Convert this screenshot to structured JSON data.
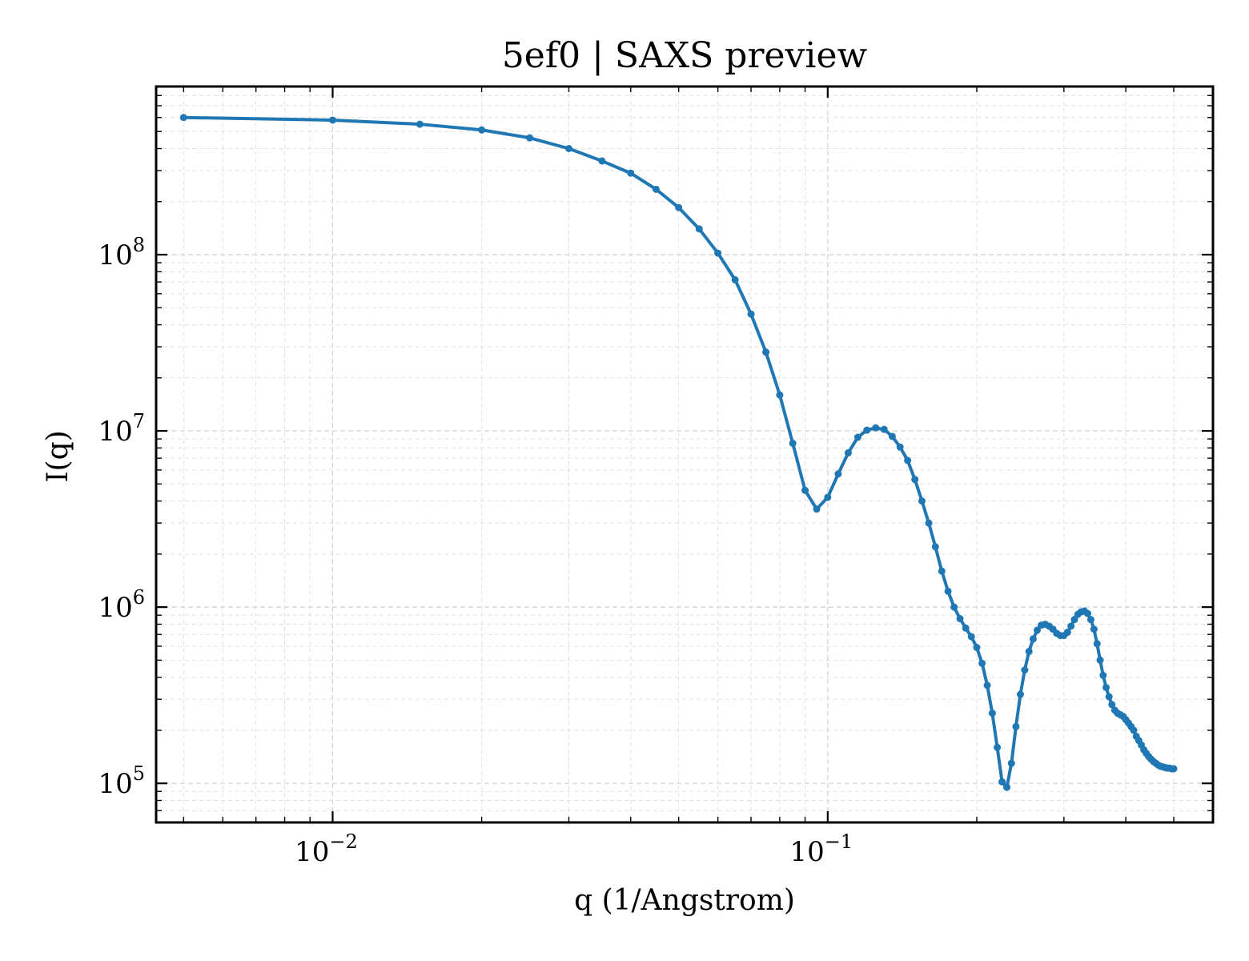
{
  "chart_data": {
    "type": "line",
    "title": "5ef0 | SAXS preview",
    "xlabel": "q (1/Angstrom)",
    "ylabel": "I(q)",
    "xscale": "log",
    "yscale": "log",
    "xlim": [
      0.0044,
      0.6
    ],
    "ylim": [
      60000,
      900000000
    ],
    "x_ticks": [
      {
        "value": 0.01,
        "base": "10",
        "exp": "−2"
      },
      {
        "value": 0.1,
        "base": "10",
        "exp": "−1"
      }
    ],
    "y_ticks": [
      {
        "value": 100000,
        "base": "10",
        "exp": "5"
      },
      {
        "value": 1000000,
        "base": "10",
        "exp": "6"
      },
      {
        "value": 10000000,
        "base": "10",
        "exp": "7"
      },
      {
        "value": 100000000,
        "base": "10",
        "exp": "8"
      }
    ],
    "grid": "both",
    "line_color": "#1f77b4",
    "series": [
      {
        "x": [
          0.005,
          0.01,
          0.015,
          0.02,
          0.025,
          0.03,
          0.035,
          0.04,
          0.045,
          0.05,
          0.055,
          0.06,
          0.065,
          0.07,
          0.075,
          0.08,
          0.085,
          0.09,
          0.095,
          0.1,
          0.105,
          0.11,
          0.115,
          0.12,
          0.125,
          0.13,
          0.135,
          0.14,
          0.145,
          0.15,
          0.155,
          0.16,
          0.165,
          0.17,
          0.175,
          0.18,
          0.185,
          0.19,
          0.195,
          0.2,
          0.205,
          0.21,
          0.215,
          0.22,
          0.225,
          0.23,
          0.235,
          0.24,
          0.245,
          0.25,
          0.255,
          0.26,
          0.265,
          0.27,
          0.275,
          0.28,
          0.285,
          0.29,
          0.295,
          0.3,
          0.305,
          0.31,
          0.315,
          0.32,
          0.325,
          0.33,
          0.335,
          0.34,
          0.345,
          0.35,
          0.355,
          0.36,
          0.365,
          0.37,
          0.375,
          0.38,
          0.385,
          0.39,
          0.395,
          0.4,
          0.405,
          0.41,
          0.415,
          0.42,
          0.425,
          0.43,
          0.435,
          0.44,
          0.445,
          0.45,
          0.455,
          0.46,
          0.465,
          0.47,
          0.475,
          0.48,
          0.485,
          0.49,
          0.495,
          0.5
        ],
        "y": [
          600000000,
          580000000,
          550000000,
          510000000,
          460000000,
          400000000,
          340000000,
          290000000,
          235000000,
          185000000,
          140000000,
          102000000,
          72000000,
          46000000,
          28000000,
          16000000,
          8500000,
          4600000,
          3600000,
          4200000,
          5700000,
          7500000,
          9200000,
          10100000,
          10400000,
          10200000,
          9300000,
          8100000,
          6800000,
          5300000,
          4000000,
          3000000,
          2200000,
          1600000,
          1230000,
          1000000,
          860000,
          760000,
          680000,
          590000,
          480000,
          360000,
          250000,
          160000,
          102000,
          95000,
          130000,
          210000,
          320000,
          440000,
          560000,
          660000,
          740000,
          790000,
          800000,
          780000,
          750000,
          710000,
          690000,
          690000,
          720000,
          780000,
          850000,
          910000,
          940000,
          950000,
          920000,
          850000,
          750000,
          620000,
          500000,
          410000,
          350000,
          310000,
          280000,
          260000,
          250000,
          245000,
          240000,
          230000,
          220000,
          210000,
          200000,
          185000,
          175000,
          165000,
          155000,
          148000,
          142000,
          137000,
          133000,
          130000,
          127000,
          125000,
          124000,
          123000,
          122000,
          122000,
          121000,
          121000
        ]
      }
    ]
  }
}
